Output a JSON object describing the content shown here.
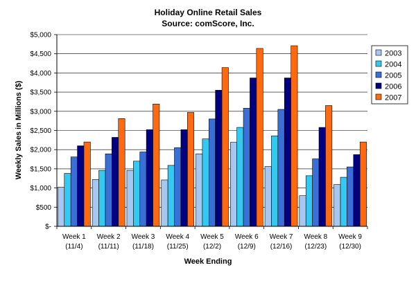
{
  "chart_data": {
    "type": "bar",
    "title": "Holiday Online Retail Sales",
    "subtitle": "Source: comScore, Inc.",
    "xlabel": "Week Ending",
    "ylabel": "Weekly Sales in Millions ($)",
    "ylim": [
      0,
      5000
    ],
    "yticks": [
      {
        "value": 0,
        "label": "$-"
      },
      {
        "value": 500,
        "label": "$500"
      },
      {
        "value": 1000,
        "label": "$1,000"
      },
      {
        "value": 1500,
        "label": "$1,500"
      },
      {
        "value": 2000,
        "label": "$2,000"
      },
      {
        "value": 2500,
        "label": "$2,500"
      },
      {
        "value": 3000,
        "label": "$3,000"
      },
      {
        "value": 3500,
        "label": "$3,500"
      },
      {
        "value": 4000,
        "label": "$4,000"
      },
      {
        "value": 4500,
        "label": "$4,500"
      },
      {
        "value": 5000,
        "label": "$5,000"
      }
    ],
    "categories": [
      {
        "line1": "Week 1",
        "line2": "(11/4)"
      },
      {
        "line1": "Week 2",
        "line2": "(11/11)"
      },
      {
        "line1": "Week 3",
        "line2": "(11/18)"
      },
      {
        "line1": "Week 4",
        "line2": "(11/25)"
      },
      {
        "line1": "Week 5",
        "line2": "(12/2)"
      },
      {
        "line1": "Week 6",
        "line2": "(12/9)"
      },
      {
        "line1": "Week 7",
        "line2": "(12/16)"
      },
      {
        "line1": "Week 8",
        "line2": "(12/23)"
      },
      {
        "line1": "Week 9",
        "line2": "(12/30)"
      }
    ],
    "series": [
      {
        "name": "2003",
        "color": "#a6c8f0",
        "values": [
          1020,
          1220,
          1460,
          1210,
          1890,
          2190,
          1560,
          800,
          1090
        ]
      },
      {
        "name": "2004",
        "color": "#33c9f0",
        "values": [
          1380,
          1460,
          1700,
          1590,
          2280,
          2580,
          2360,
          1320,
          1280
        ]
      },
      {
        "name": "2005",
        "color": "#3a6fd8",
        "values": [
          1810,
          1890,
          1940,
          2050,
          2800,
          3080,
          3050,
          1760,
          1550
        ]
      },
      {
        "name": "2006",
        "color": "#000080",
        "values": [
          2100,
          2320,
          2520,
          2520,
          3550,
          3870,
          3870,
          2580,
          1870
        ]
      },
      {
        "name": "2007",
        "color": "#ff6a10",
        "values": [
          2200,
          2810,
          3190,
          2970,
          4140,
          4640,
          4710,
          3150,
          2200
        ]
      }
    ],
    "grid": true,
    "legend": "right"
  }
}
